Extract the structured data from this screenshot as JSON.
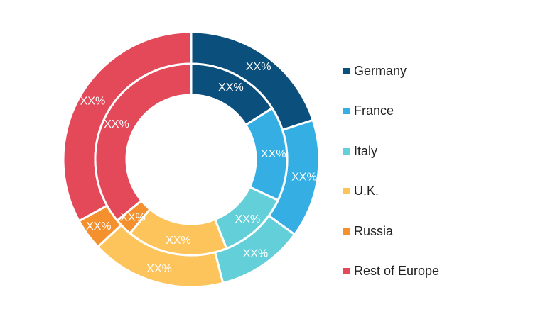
{
  "chart_data": {
    "type": "pie",
    "subtype": "nested-donut",
    "categories": [
      "Germany",
      "France",
      "Italy",
      "U.K.",
      "Russia",
      "Rest of Europe"
    ],
    "colors": [
      "#0b4f7c",
      "#35afe3",
      "#62cfd9",
      "#fec45c",
      "#f4902e",
      "#e4495a"
    ],
    "series": [
      {
        "ring": "outer",
        "values": [
          20,
          15,
          11,
          17,
          4,
          33
        ],
        "labels": [
          "XX%",
          "XX%",
          "XX%",
          "XX%",
          "XX%",
          "XX%"
        ]
      },
      {
        "ring": "inner",
        "values": [
          16,
          16,
          12,
          17,
          3,
          36
        ],
        "labels": [
          "XX%",
          "XX%",
          "XX%",
          "XX%",
          "XX%",
          "XX%"
        ]
      }
    ],
    "legend_position": "right"
  }
}
